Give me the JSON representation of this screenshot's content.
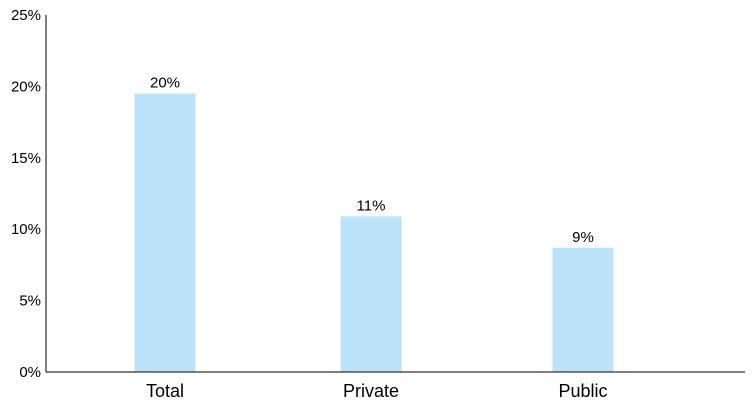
{
  "chart_data": {
    "type": "bar",
    "categories": [
      "Total",
      "Private",
      "Public"
    ],
    "values": [
      19.5,
      10.9,
      8.7
    ],
    "data_labels": [
      "20%",
      "11%",
      "9%"
    ],
    "y_ticks": [
      {
        "value": 0,
        "label": "0%"
      },
      {
        "value": 5,
        "label": "5%"
      },
      {
        "value": 10,
        "label": "10%"
      },
      {
        "value": 15,
        "label": "15%"
      },
      {
        "value": 20,
        "label": "20%"
      },
      {
        "value": 25,
        "label": "25%"
      }
    ],
    "ylim": [
      0,
      25
    ],
    "grid": false,
    "legend": "none",
    "colors": {
      "bar": "#bde3f8",
      "axis": "#000000"
    }
  }
}
